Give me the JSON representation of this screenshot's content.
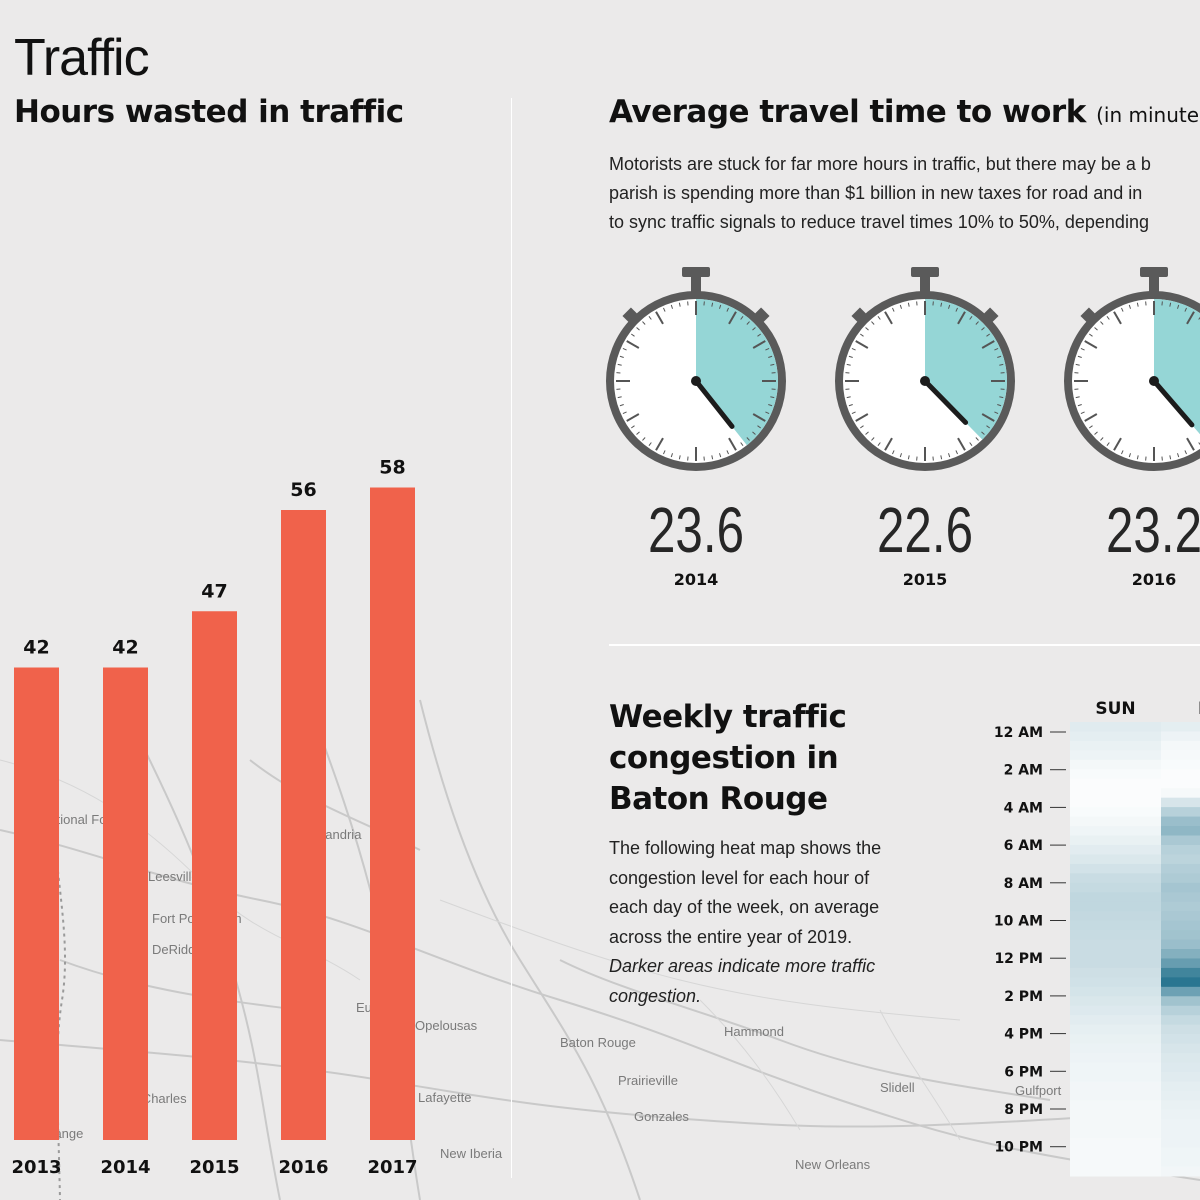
{
  "page": {
    "title": "Traffic"
  },
  "background_map": {
    "labels": [
      "Baton Rouge",
      "Prairieville",
      "Gonzales",
      "Hammond",
      "Slidell",
      "New Orleans",
      "New Iberia",
      "Lafayette",
      "Eunice",
      "Opelousas",
      "Leesville",
      "Fort Polk South",
      "DeRidder",
      "Lake Charles",
      "Alexandria",
      "National Forest",
      "Gulfport",
      "Orange"
    ]
  },
  "hours_chart": {
    "title": "Hours wasted in traffic",
    "bar_color": "#f0624b"
  },
  "travel_time": {
    "title": "Average travel time to work",
    "unit_note": "(in minutes)",
    "intro_lines": [
      "Motorists are stuck for far more hours in traffic, but there may be a b",
      "parish is spending more than $1 billion in new taxes for road and in",
      "to sync traffic signals to reduce travel times 10% to 50%, depending"
    ],
    "accent_color": "#95d6d6"
  },
  "weekly": {
    "title_lines": [
      "Weekly traffic",
      "congestion in",
      "Baton Rouge"
    ],
    "desc_lines": [
      "The following heat map shows the",
      "congestion level for each hour of",
      "each day of the week, on average",
      "across the entire year of 2019."
    ],
    "desc_italic_lines": [
      "Darker areas indicate more traffic",
      "congestion."
    ]
  },
  "chart_data": [
    {
      "type": "bar",
      "title": "Hours wasted in traffic",
      "categories": [
        "2013",
        "2014",
        "2015",
        "2016",
        "2017"
      ],
      "values": [
        42,
        42,
        47,
        56,
        58
      ],
      "ylim": [
        0,
        62
      ],
      "grid": false
    },
    {
      "type": "gauge",
      "title": "Average travel time to work",
      "unit": "(in minutes)",
      "categories": [
        "2014",
        "2015",
        "2016"
      ],
      "values": [
        23.6,
        22.6,
        23.2
      ],
      "value_labels": [
        "23.6",
        "22.6",
        "23.2"
      ],
      "dial_max": 60
    },
    {
      "type": "heatmap",
      "title": "Weekly traffic congestion in Baton Rouge",
      "days": [
        "SUN",
        "M"
      ],
      "hour_labels": [
        "12 AM",
        "2 AM",
        "4 AM",
        "6 AM",
        "8 AM",
        "10 AM",
        "12 PM",
        "2 PM",
        "4 PM",
        "6 PM",
        "8 PM",
        "10 PM"
      ],
      "scale": "Darker areas indicate more traffic congestion",
      "values": [
        [
          0.14,
          0.12
        ],
        [
          0.12,
          0.08
        ],
        [
          0.1,
          0.05
        ],
        [
          0.08,
          0.04
        ],
        [
          0.05,
          0.03
        ],
        [
          0.03,
          0.02
        ],
        [
          0.02,
          0.02
        ],
        [
          0.02,
          0.04
        ],
        [
          0.02,
          0.18
        ],
        [
          0.03,
          0.32
        ],
        [
          0.05,
          0.45
        ],
        [
          0.07,
          0.5
        ],
        [
          0.1,
          0.38
        ],
        [
          0.13,
          0.32
        ],
        [
          0.16,
          0.3
        ],
        [
          0.2,
          0.34
        ],
        [
          0.24,
          0.36
        ],
        [
          0.26,
          0.4
        ],
        [
          0.28,
          0.38
        ],
        [
          0.28,
          0.36
        ],
        [
          0.27,
          0.38
        ],
        [
          0.26,
          0.4
        ],
        [
          0.25,
          0.42
        ],
        [
          0.24,
          0.45
        ],
        [
          0.24,
          0.55
        ],
        [
          0.24,
          0.68
        ],
        [
          0.22,
          0.85
        ],
        [
          0.21,
          0.95
        ],
        [
          0.19,
          0.65
        ],
        [
          0.17,
          0.42
        ],
        [
          0.15,
          0.32
        ],
        [
          0.13,
          0.26
        ],
        [
          0.11,
          0.22
        ],
        [
          0.1,
          0.2
        ],
        [
          0.09,
          0.18
        ],
        [
          0.08,
          0.16
        ],
        [
          0.07,
          0.15
        ],
        [
          0.07,
          0.14
        ],
        [
          0.06,
          0.12
        ],
        [
          0.06,
          0.11
        ],
        [
          0.05,
          0.1
        ],
        [
          0.05,
          0.09
        ],
        [
          0.05,
          0.08
        ],
        [
          0.05,
          0.08
        ],
        [
          0.04,
          0.08
        ],
        [
          0.04,
          0.07
        ],
        [
          0.04,
          0.07
        ],
        [
          0.04,
          0.06
        ]
      ],
      "color_high": "#1f6f8b"
    }
  ]
}
